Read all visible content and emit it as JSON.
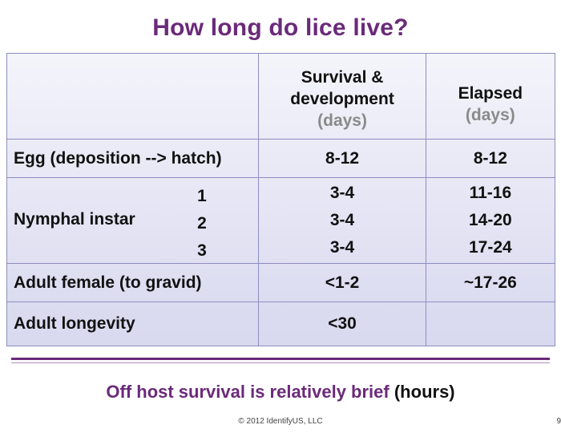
{
  "title": "How long do lice live?",
  "table": {
    "header": {
      "col1": "",
      "col2_line1": "Survival &",
      "col2_line2": "development",
      "col2_unit": "(days)",
      "col3_line1": "Elapsed",
      "col3_unit": "(days)"
    },
    "rows": [
      {
        "label": "Egg (deposition --> hatch)",
        "survival": "8-12",
        "elapsed": "8-12"
      },
      {
        "label": "Nymphal instar",
        "instars": [
          "1",
          "2",
          "3"
        ],
        "survival": [
          "3-4",
          "3-4",
          "3-4"
        ],
        "elapsed": [
          "11-16",
          "14-20",
          "17-24"
        ]
      },
      {
        "label": "Adult female (to gravid)",
        "survival": "<1-2",
        "elapsed": "~17-26"
      },
      {
        "label": "Adult longevity",
        "survival": "<30",
        "elapsed": ""
      }
    ]
  },
  "note": {
    "text": "Off host survival is relatively brief",
    "suffix": "(hours)"
  },
  "copyright": "© 2012 IdentifyUS, LLC",
  "page_number": "9",
  "colors": {
    "accent": "#6b2a7a",
    "table_border": "#8e8ec0",
    "table_fill_top": "#f4f4fb",
    "table_fill_bottom": "#d8d8ef",
    "muted_text": "#8a8a8a"
  }
}
